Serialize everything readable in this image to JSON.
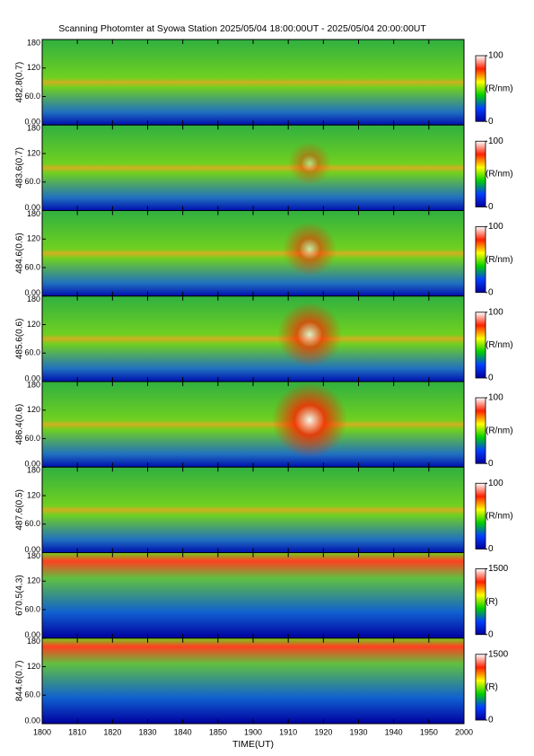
{
  "chart_data": {
    "type": "heatmap",
    "title": "Scanning Photomter at Syowa Station 2025/05/04 18:00:00UT - 2025/05/04 20:00:00UT",
    "xlabel": "TIME(UT)",
    "xticks": [
      "1800",
      "1810",
      "1820",
      "1830",
      "1840",
      "1850",
      "1900",
      "1910",
      "1920",
      "1930",
      "1940",
      "1950",
      "2000"
    ],
    "panels": [
      {
        "ylabel": "482.8(0.7)",
        "ylim": [
          0,
          180
        ],
        "yticks": [
          {
            "value": 0,
            "label": "0.00"
          },
          {
            "value": 60,
            "label": "60.0"
          },
          120,
          180
        ],
        "clim": [
          0,
          100
        ],
        "cticks": [
          0,
          100
        ],
        "clabel": "(R/nm)"
      },
      {
        "ylabel": "483.6(0.7)",
        "ylim": [
          0,
          180
        ],
        "yticks": [
          {
            "value": 0,
            "label": "0.00"
          },
          {
            "value": 60,
            "label": "60.0"
          },
          120,
          180
        ],
        "clim": [
          0,
          100
        ],
        "cticks": [
          0,
          100
        ],
        "clabel": "(R/nm)"
      },
      {
        "ylabel": "484.6(0.6)",
        "ylim": [
          0,
          180
        ],
        "yticks": [
          {
            "value": 0,
            "label": "0.00"
          },
          {
            "value": 60,
            "label": "60.0"
          },
          120,
          180
        ],
        "clim": [
          0,
          100
        ],
        "cticks": [
          0,
          100
        ],
        "clabel": "(R/nm)"
      },
      {
        "ylabel": "485.6(0.6)",
        "ylim": [
          0,
          180
        ],
        "yticks": [
          {
            "value": 0,
            "label": "0.00"
          },
          {
            "value": 60,
            "label": "60.0"
          },
          120,
          180
        ],
        "clim": [
          0,
          100
        ],
        "cticks": [
          0,
          100
        ],
        "clabel": "(R/nm)"
      },
      {
        "ylabel": "486.4(0.6)",
        "ylim": [
          0,
          180
        ],
        "yticks": [
          {
            "value": 0,
            "label": "0.00"
          },
          {
            "value": 60,
            "label": "60.0"
          },
          120,
          180
        ],
        "clim": [
          0,
          100
        ],
        "cticks": [
          0,
          100
        ],
        "clabel": "(R/nm)"
      },
      {
        "ylabel": "487.6(0.5)",
        "ylim": [
          0,
          180
        ],
        "yticks": [
          {
            "value": 0,
            "label": "0.00"
          },
          {
            "value": 60,
            "label": "60.0"
          },
          120,
          180
        ],
        "clim": [
          0,
          100
        ],
        "cticks": [
          0,
          100
        ],
        "clabel": "(R/nm)"
      },
      {
        "ylabel": "670.5(4.3)",
        "ylim": [
          0,
          180
        ],
        "yticks": [
          {
            "value": 0,
            "label": "0.00"
          },
          {
            "value": 60,
            "label": "60.0"
          },
          120,
          180
        ],
        "clim": [
          0,
          1500
        ],
        "cticks": [
          0,
          1500
        ],
        "clabel": "(R)"
      },
      {
        "ylabel": "844.6(0.7)",
        "ylim": [
          0,
          180
        ],
        "yticks": [
          {
            "value": 0,
            "label": "0.00"
          },
          {
            "value": 60,
            "label": "60.0"
          },
          120,
          180
        ],
        "clim": [
          0,
          1500
        ],
        "cticks": [
          0,
          1500
        ],
        "clabel": "(R)"
      }
    ]
  }
}
